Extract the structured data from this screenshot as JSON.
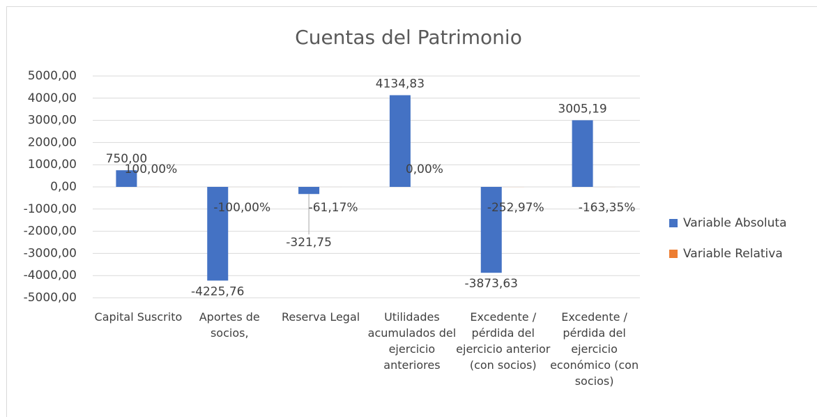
{
  "chart_data": {
    "type": "bar",
    "title": "Cuentas del Patrimonio",
    "categories": [
      "Capital Suscrito",
      "Aportes de socios,",
      "Reserva Legal",
      "Utilidades acumulados del ejercicio anteriores",
      "Excedente / pérdida del ejercicio anterior (con socios)",
      "Excedente / pérdida del ejercicio económico (con socios)"
    ],
    "series": [
      {
        "name": "Variable Absoluta",
        "color": "#4472c4",
        "values": [
          750,
          -4225.76,
          -321.75,
          4134.83,
          -3873.63,
          3005.19
        ],
        "value_labels": [
          "750,00",
          "-4225,76",
          "-321,75",
          "4134,83",
          "-3873,63",
          "3005,19"
        ]
      },
      {
        "name": "Variable Relativa",
        "color": "#ed7d31",
        "values": [
          1,
          -1,
          -0.6117,
          0,
          -2.5297,
          -1.6335
        ],
        "value_labels": [
          "100,00%",
          "-100,00%",
          "-61,17%",
          "0,00%",
          "-252,97%",
          "-163,35%"
        ]
      }
    ],
    "ylim": [
      -5000,
      5000
    ],
    "yticks": [
      {
        "value": -5000,
        "label": "-5000,00"
      },
      {
        "value": -4000,
        "label": "-4000,00"
      },
      {
        "value": -3000,
        "label": "-3000,00"
      },
      {
        "value": -2000,
        "label": "-2000,00"
      },
      {
        "value": -1000,
        "label": "-1000,00"
      },
      {
        "value": 0,
        "label": "0,00"
      },
      {
        "value": 1000,
        "label": "1000,00"
      },
      {
        "value": 2000,
        "label": "2000,00"
      },
      {
        "value": 3000,
        "label": "3000,00"
      },
      {
        "value": 4000,
        "label": "4000,00"
      },
      {
        "value": 5000,
        "label": "5000,00"
      }
    ],
    "grid": true,
    "legend": "right"
  }
}
